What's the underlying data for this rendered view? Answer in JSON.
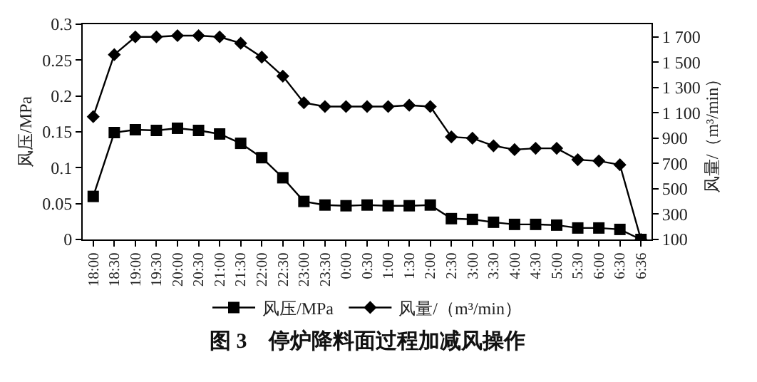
{
  "chart_data": {
    "type": "line",
    "title": "图 3　停炉降料面过程加减风操作",
    "ylabel": "风压/MPa",
    "y2label": "风量/（m³/min）",
    "categories": [
      "18:00",
      "18:30",
      "19:00",
      "19:30",
      "20:00",
      "20:30",
      "21:00",
      "21:30",
      "22:00",
      "22:30",
      "23:00",
      "23:30",
      "0:00",
      "0:30",
      "1:00",
      "1:30",
      "2:00",
      "2:30",
      "3:00",
      "3:30",
      "4:00",
      "4:30",
      "5:00",
      "5:30",
      "6:00",
      "6:30",
      "6:36"
    ],
    "series": [
      {
        "name": "风压/MPa",
        "color": "#000000",
        "marker": "square",
        "values": [
          0.06,
          0.149,
          0.153,
          0.152,
          0.155,
          0.152,
          0.147,
          0.134,
          0.114,
          0.086,
          0.053,
          0.048,
          0.047,
          0.048,
          0.047,
          0.047,
          0.048,
          0.029,
          0.028,
          0.024,
          0.021,
          0.021,
          0.02,
          0.016,
          0.016,
          0.014,
          0
        ]
      },
      {
        "name": "风量/（m³/min）",
        "color": "#000000",
        "marker": "diamond",
        "axis": "y2",
        "values": [
          1070,
          1560,
          1700,
          1700,
          1710,
          1710,
          1700,
          1650,
          1540,
          1390,
          1180,
          1150,
          1150,
          1150,
          1150,
          1160,
          1150,
          910,
          900,
          840,
          810,
          820,
          820,
          730,
          720,
          690,
          100
        ]
      }
    ],
    "ylim": [
      0,
      0.3
    ],
    "yticks": [
      0,
      0.05,
      0.1,
      0.15,
      0.2,
      0.25,
      0.3
    ],
    "y2lim": [
      100,
      1800
    ],
    "y2ticks": [
      100,
      300,
      500,
      700,
      900,
      {
        "value": 1100,
        "label": "1 100"
      },
      {
        "value": 1300,
        "label": "1 300"
      },
      {
        "value": 1500,
        "label": "1 500"
      },
      {
        "value": 1700,
        "label": "1 700"
      }
    ],
    "legend": "bottom",
    "line_style": "solid"
  }
}
